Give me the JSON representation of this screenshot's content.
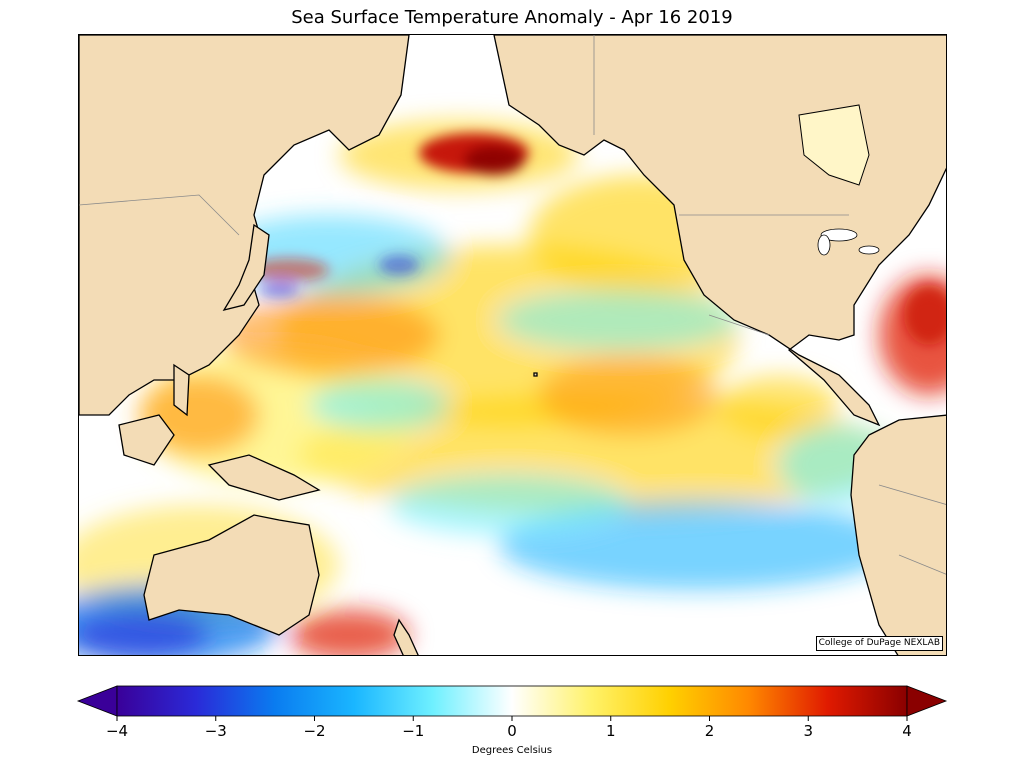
{
  "title": "Sea Surface Temperature Anomaly - Apr 16 2019",
  "credit": "College of DuPage NEXLAB",
  "colorbar": {
    "label": "Degrees Celsius",
    "ticks": [
      "−4",
      "−3",
      "−2",
      "−1",
      "0",
      "1",
      "2",
      "3",
      "4"
    ],
    "range": [
      -4,
      4
    ],
    "extend": "both"
  },
  "colors": {
    "land": "#f3dcb6",
    "coast": "#000000",
    "border": "#8a8a8a",
    "scale": [
      "#3a0099",
      "#2a2ad8",
      "#0a7cf0",
      "#1ab6ff",
      "#6ff0ff",
      "#ffffff",
      "#fff26a",
      "#ffd000",
      "#ff8800",
      "#e01a00",
      "#8a0000"
    ]
  }
}
